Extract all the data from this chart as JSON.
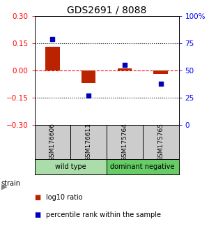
{
  "title": "GDS2691 / 8088",
  "samples": [
    "GSM176606",
    "GSM176611",
    "GSM175764",
    "GSM175765"
  ],
  "log10_ratio": [
    0.13,
    -0.07,
    0.01,
    -0.02
  ],
  "percentile_rank": [
    79,
    27,
    55,
    38
  ],
  "groups": [
    {
      "label": "wild type",
      "samples": [
        0,
        1
      ],
      "color": "#aaddaa"
    },
    {
      "label": "dominant negative",
      "samples": [
        2,
        3
      ],
      "color": "#66cc66"
    }
  ],
  "ylim_left": [
    -0.3,
    0.3
  ],
  "ylim_right": [
    0,
    100
  ],
  "yticks_left": [
    -0.3,
    -0.15,
    0,
    0.15,
    0.3
  ],
  "yticks_right": [
    0,
    25,
    50,
    75,
    100
  ],
  "ytick_labels_right": [
    "0",
    "25",
    "50",
    "75",
    "100%"
  ],
  "hline_dotted": [
    -0.15,
    0.15
  ],
  "hline_dashed": 0,
  "bar_color": "#bb2200",
  "dot_color": "#0000bb",
  "bar_width": 0.4,
  "title_fontsize": 10,
  "axis_fontsize": 7.5,
  "sample_fontsize": 6.5,
  "legend_fontsize": 7,
  "group_fontsize": 7
}
